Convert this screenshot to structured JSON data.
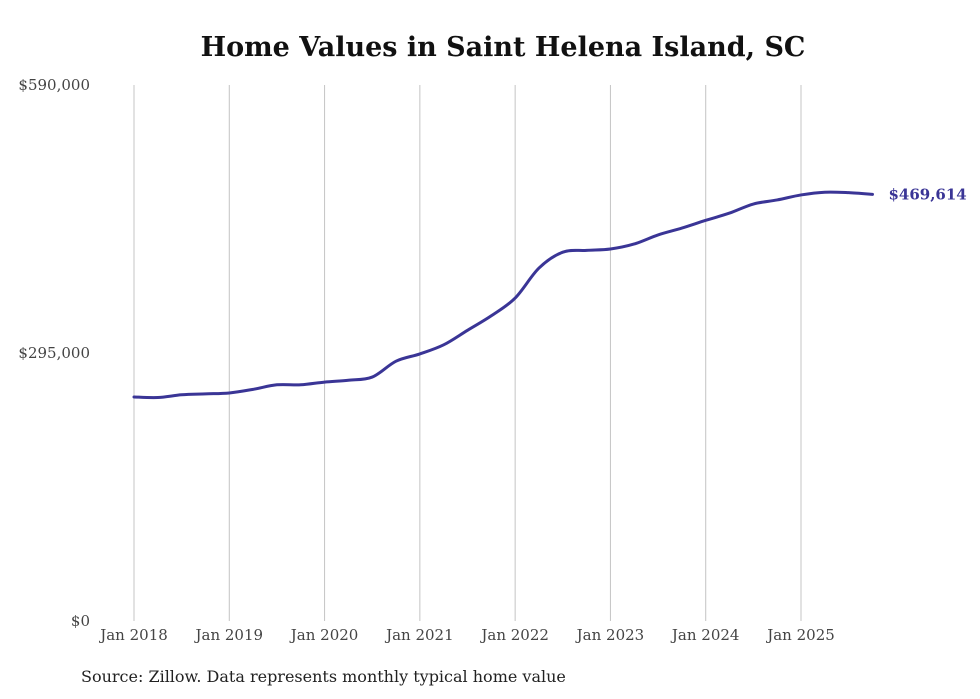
{
  "chart_data": {
    "type": "line",
    "title": "Home Values in Saint Helena Island, SC",
    "source": "Source: Zillow. Data represents monthly typical home value",
    "xlabel": "",
    "ylabel": "",
    "ylim": [
      0,
      590000
    ],
    "xlim": [
      2018,
      2025.75
    ],
    "y_ticks": [
      {
        "value": 0,
        "label": "$0"
      },
      {
        "value": 295000,
        "label": "$295,000"
      },
      {
        "value": 590000,
        "label": "$590,000"
      }
    ],
    "x_ticks": [
      {
        "value": 2018,
        "label": "Jan 2018"
      },
      {
        "value": 2019,
        "label": "Jan 2019"
      },
      {
        "value": 2020,
        "label": "Jan 2020"
      },
      {
        "value": 2021,
        "label": "Jan 2021"
      },
      {
        "value": 2022,
        "label": "Jan 2022"
      },
      {
        "value": 2023,
        "label": "Jan 2023"
      },
      {
        "value": 2024,
        "label": "Jan 2024"
      },
      {
        "value": 2025,
        "label": "Jan 2025"
      }
    ],
    "grid": "vertical",
    "end_label": "$469,614",
    "color": "#3a3596",
    "series": [
      {
        "name": "Typical home value",
        "x": [
          2018,
          2018.25,
          2018.5,
          2018.75,
          2019,
          2019.25,
          2019.5,
          2019.75,
          2020,
          2020.25,
          2020.5,
          2020.75,
          2021,
          2021.25,
          2021.5,
          2021.75,
          2022,
          2022.25,
          2022.5,
          2022.75,
          2023,
          2023.25,
          2023.5,
          2023.75,
          2024,
          2024.25,
          2024.5,
          2024.75,
          2025,
          2025.25,
          2025.5,
          2025.75
        ],
        "values": [
          246600,
          246000,
          249000,
          250000,
          251000,
          255000,
          260000,
          260000,
          263000,
          265000,
          268500,
          286000,
          294000,
          304000,
          320000,
          336000,
          355500,
          388500,
          406000,
          408000,
          409500,
          415000,
          425000,
          432500,
          441000,
          449000,
          459000,
          463500,
          469000,
          472000,
          471500,
          469614
        ]
      }
    ]
  }
}
